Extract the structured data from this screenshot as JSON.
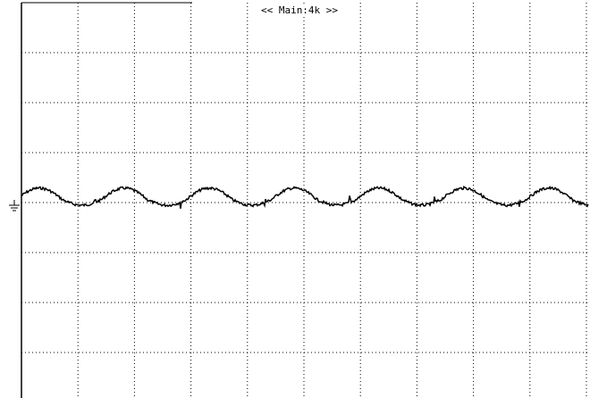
{
  "header": {
    "label": "<< Main:4k >>"
  }
}
